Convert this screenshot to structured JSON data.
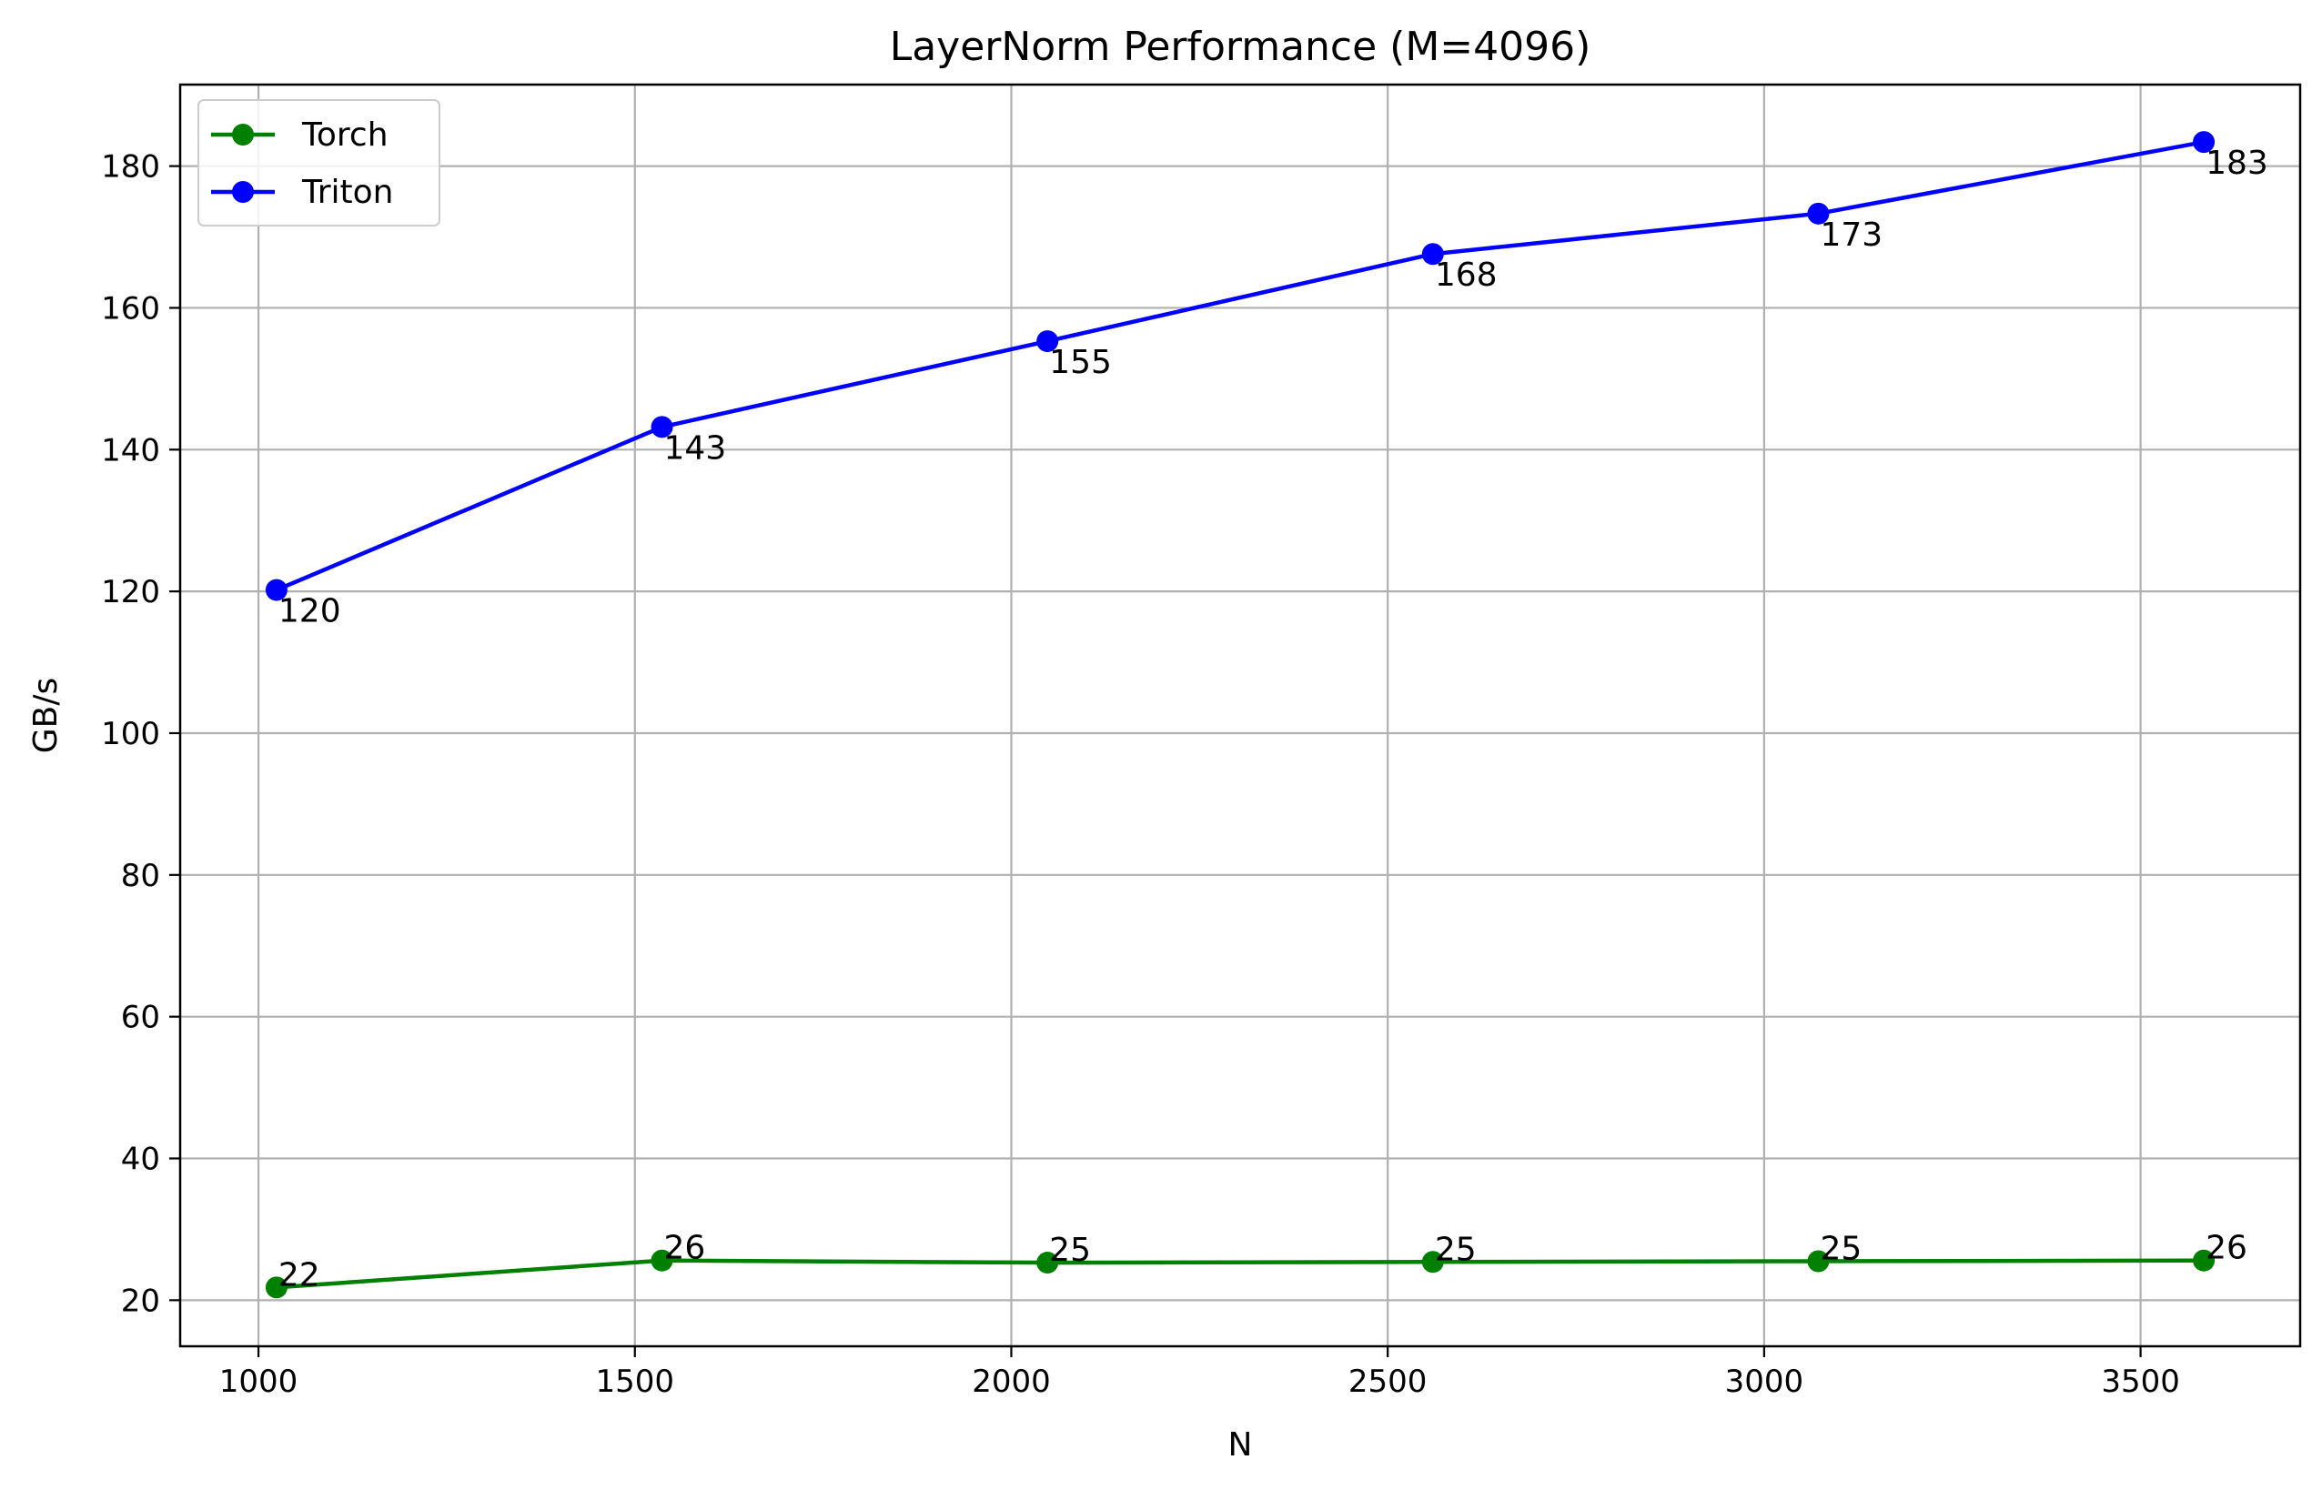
{
  "chart_data": {
    "type": "line",
    "title": "LayerNorm Performance (M=4096)",
    "xlabel": "N",
    "ylabel": "GB/s",
    "x": [
      1024,
      1536,
      2048,
      2560,
      3072,
      3584
    ],
    "xlim": [
      896,
      3712
    ],
    "ylim": [
      13.5,
      191.5
    ],
    "xticks": [
      1000,
      1500,
      2000,
      2500,
      3000,
      3500
    ],
    "yticks": [
      20,
      40,
      60,
      80,
      100,
      120,
      140,
      160,
      180
    ],
    "grid": true,
    "legend_position": "top-left",
    "series": [
      {
        "name": "Torch",
        "color": "#008000",
        "marker": "circle",
        "values": [
          21.8,
          25.6,
          25.3,
          25.4,
          25.5,
          25.6
        ],
        "labels": [
          "22",
          "26",
          "25",
          "25",
          "25",
          "26"
        ],
        "label_placement": "above"
      },
      {
        "name": "Triton",
        "color": "#0000ff",
        "marker": "circle",
        "values": [
          120.2,
          143.2,
          155.3,
          167.6,
          173.3,
          183.4
        ],
        "labels": [
          "120",
          "143",
          "155",
          "168",
          "173",
          "183"
        ],
        "label_placement": "below"
      }
    ]
  }
}
